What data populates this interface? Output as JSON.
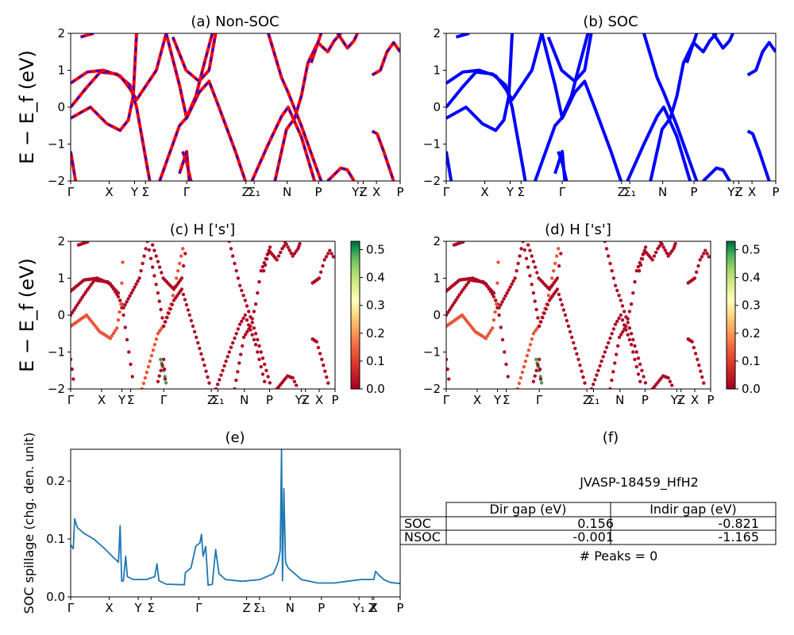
{
  "figure": {
    "titles": [
      "(a) Non-SOC",
      "(b) SOC",
      "(c)  H ['s']",
      "(d) H ['s']",
      "(e)",
      "(f)"
    ],
    "band_ylabel": "E − E_f (eV)",
    "spillage_ylabel": "SOC spillage (chg. den. unit)"
  },
  "kpath": {
    "band_ticks": [
      "Γ",
      "X",
      "Y",
      "Σ",
      "Γ",
      "Z",
      "Σ₁",
      "N",
      "P",
      "Y₁",
      "Z",
      "X",
      "P"
    ],
    "spillage_ticks": [
      "Γ",
      "X",
      "Y",
      "Σ",
      "Γ",
      "Z",
      "Σ₁",
      "N",
      "P",
      "Y₁",
      "Z",
      "X",
      "P"
    ]
  },
  "colorbar": {
    "ticks": [
      "0.0",
      "0.1",
      "0.2",
      "0.3",
      "0.4",
      "0.5"
    ],
    "cmap": "RdYlGn"
  },
  "table": {
    "material": "JVASP-18459_HfH2",
    "col_labels": [
      "Dir gap (eV)",
      "Indir gap (eV)"
    ],
    "rows": [
      {
        "label": "SOC",
        "dir": "0.156",
        "indir": "-0.821"
      },
      {
        "label": "NSOC",
        "dir": "-0.001",
        "indir": "-1.165"
      }
    ],
    "peaks": "# Peaks = 0"
  },
  "chart_data": [
    {
      "type": "line",
      "panel": "a",
      "title": "(a) Non-SOC",
      "ylabel": "E − E_f (eV)",
      "ylim": [
        -2,
        2
      ],
      "yticks": [
        -2,
        -1,
        0,
        1,
        2
      ],
      "xticks": [
        "Γ",
        "X",
        "Y",
        "Σ",
        "Γ",
        "Z",
        "Σ₁",
        "N",
        "P",
        "Y₁",
        "Z",
        "X",
        "P"
      ],
      "series": [
        {
          "color": "#ff0000",
          "style": "solid"
        },
        {
          "color": "#0000ff",
          "style": "dashed"
        }
      ]
    },
    {
      "type": "line",
      "panel": "b",
      "title": "(b) SOC",
      "ylim": [
        -2,
        2
      ],
      "yticks": [
        -2,
        -1,
        0,
        1,
        2
      ],
      "xticks": [
        "Γ",
        "X",
        "Y",
        "Σ",
        "Γ",
        "Z",
        "Σ₁",
        "N",
        "P",
        "Y₁",
        "Z",
        "X",
        "P"
      ],
      "series": [
        {
          "color": "#0000ff",
          "style": "solid"
        }
      ]
    },
    {
      "type": "scatter",
      "panel": "c",
      "title": "(c)  H ['s']",
      "ylabel": "E − E_f (eV)",
      "ylim": [
        -2,
        2
      ],
      "colorbar_range": [
        0,
        0.53
      ]
    },
    {
      "type": "scatter",
      "panel": "d",
      "title": "(d) H ['s']",
      "ylim": [
        -2,
        2
      ],
      "colorbar_range": [
        0,
        0.53
      ]
    },
    {
      "type": "line",
      "panel": "e",
      "title": "(e)",
      "ylabel": "SOC spillage (chg. den. unit)",
      "ylim": [
        0,
        0.255
      ],
      "yticks": [
        0.0,
        0.1,
        0.2
      ],
      "xticks": [
        "Γ",
        "X",
        "Y",
        "Σ",
        "Γ",
        "Z",
        "Σ₁",
        "N",
        "P",
        "Y₁",
        "Z",
        "X",
        "P"
      ],
      "color": "#1f77b4",
      "points": [
        [
          0.0,
          0.09
        ],
        [
          0.008,
          0.083
        ],
        [
          0.012,
          0.135
        ],
        [
          0.02,
          0.12
        ],
        [
          0.04,
          0.11
        ],
        [
          0.07,
          0.1
        ],
        [
          0.1,
          0.085
        ],
        [
          0.13,
          0.068
        ],
        [
          0.145,
          0.06
        ],
        [
          0.15,
          0.123
        ],
        [
          0.155,
          0.027
        ],
        [
          0.16,
          0.028
        ],
        [
          0.167,
          0.07
        ],
        [
          0.172,
          0.035
        ],
        [
          0.19,
          0.03
        ],
        [
          0.23,
          0.03
        ],
        [
          0.255,
          0.035
        ],
        [
          0.262,
          0.057
        ],
        [
          0.268,
          0.028
        ],
        [
          0.29,
          0.022
        ],
        [
          0.345,
          0.021
        ],
        [
          0.348,
          0.042
        ],
        [
          0.365,
          0.05
        ],
        [
          0.38,
          0.088
        ],
        [
          0.392,
          0.093
        ],
        [
          0.397,
          0.108
        ],
        [
          0.402,
          0.07
        ],
        [
          0.41,
          0.087
        ],
        [
          0.417,
          0.02
        ],
        [
          0.43,
          0.022
        ],
        [
          0.44,
          0.082
        ],
        [
          0.45,
          0.04
        ],
        [
          0.47,
          0.03
        ],
        [
          0.52,
          0.027
        ],
        [
          0.575,
          0.03
        ],
        [
          0.615,
          0.04
        ],
        [
          0.63,
          0.06
        ],
        [
          0.636,
          0.08
        ],
        [
          0.64,
          0.255
        ],
        [
          0.643,
          0.028
        ],
        [
          0.647,
          0.187
        ],
        [
          0.652,
          0.06
        ],
        [
          0.66,
          0.05
        ],
        [
          0.68,
          0.04
        ],
        [
          0.7,
          0.03
        ],
        [
          0.75,
          0.024
        ],
        [
          0.8,
          0.024
        ],
        [
          0.84,
          0.027
        ],
        [
          0.88,
          0.03
        ],
        [
          0.92,
          0.03
        ],
        [
          0.925,
          0.044
        ],
        [
          0.935,
          0.038
        ],
        [
          0.95,
          0.03
        ],
        [
          0.97,
          0.025
        ],
        [
          1.0,
          0.023
        ]
      ]
    }
  ]
}
